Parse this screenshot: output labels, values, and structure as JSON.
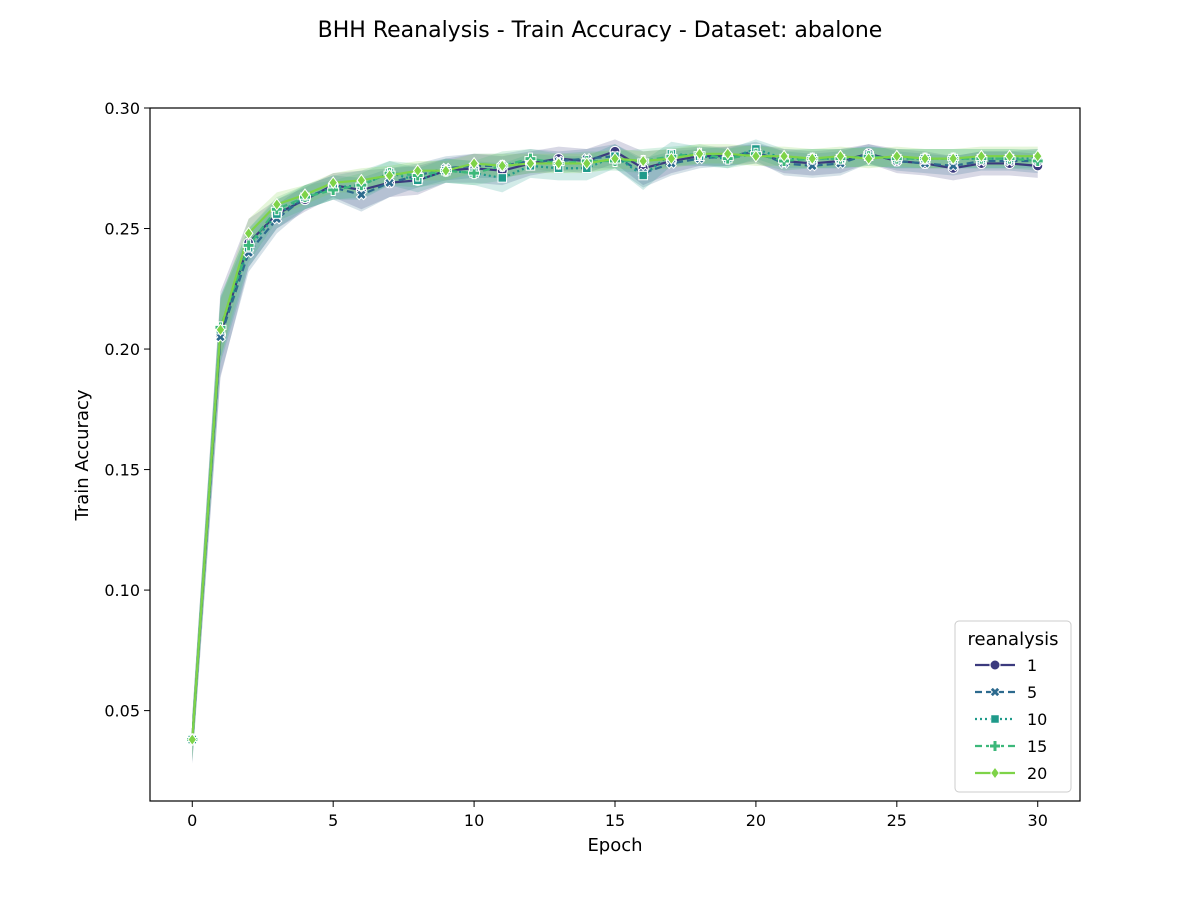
{
  "chart_data": {
    "type": "line",
    "title": "BHH Reanalysis - Train Accuracy - Dataset: abalone",
    "xlabel": "Epoch",
    "ylabel": "Train Accuracy",
    "xlim": [
      -1.5,
      31.5
    ],
    "ylim": [
      0.0125,
      0.3
    ],
    "xticks": [
      "0",
      "5",
      "10",
      "15",
      "20",
      "25",
      "30"
    ],
    "yticks": [
      "0.05",
      "0.10",
      "0.15",
      "0.20",
      "0.25",
      "0.30"
    ],
    "grid": false,
    "legend": {
      "title": "reanalysis",
      "placement": "lower-right"
    },
    "x": [
      0,
      1,
      2,
      3,
      4,
      5,
      6,
      7,
      8,
      9,
      10,
      11,
      12,
      13,
      14,
      15,
      16,
      17,
      18,
      19,
      20,
      21,
      22,
      23,
      24,
      25,
      26,
      27,
      28,
      29,
      30
    ],
    "series": [
      {
        "name": "1",
        "color": "#3b3a7e",
        "dash": "solid",
        "marker": "circle",
        "values": [
          0.038,
          0.206,
          0.244,
          0.256,
          0.262,
          0.268,
          0.266,
          0.269,
          0.27,
          0.274,
          0.275,
          0.274,
          0.277,
          0.279,
          0.278,
          0.282,
          0.275,
          0.278,
          0.28,
          0.28,
          0.281,
          0.278,
          0.277,
          0.278,
          0.281,
          0.278,
          0.277,
          0.275,
          0.277,
          0.277,
          0.276
        ],
        "band": [
          0.01,
          0.018,
          0.01,
          0.006,
          0.005,
          0.005,
          0.008,
          0.006,
          0.006,
          0.005,
          0.006,
          0.006,
          0.005,
          0.005,
          0.005,
          0.005,
          0.007,
          0.005,
          0.004,
          0.004,
          0.004,
          0.005,
          0.005,
          0.005,
          0.004,
          0.005,
          0.005,
          0.005,
          0.005,
          0.005,
          0.005
        ]
      },
      {
        "name": "5",
        "color": "#2d6a8e",
        "dash": "dashed",
        "marker": "x",
        "values": [
          0.038,
          0.205,
          0.24,
          0.254,
          0.263,
          0.267,
          0.264,
          0.269,
          0.272,
          0.275,
          0.276,
          0.276,
          0.278,
          0.278,
          0.279,
          0.28,
          0.273,
          0.277,
          0.279,
          0.28,
          0.282,
          0.277,
          0.276,
          0.277,
          0.281,
          0.278,
          0.277,
          0.276,
          0.278,
          0.278,
          0.278
        ],
        "band": [
          0.01,
          0.016,
          0.008,
          0.006,
          0.005,
          0.005,
          0.007,
          0.006,
          0.005,
          0.005,
          0.005,
          0.005,
          0.005,
          0.004,
          0.004,
          0.005,
          0.006,
          0.005,
          0.004,
          0.004,
          0.004,
          0.005,
          0.005,
          0.005,
          0.004,
          0.004,
          0.004,
          0.004,
          0.004,
          0.004,
          0.005
        ]
      },
      {
        "name": "10",
        "color": "#1f9a8a",
        "dash": "dotted",
        "marker": "square",
        "values": [
          0.038,
          0.208,
          0.242,
          0.256,
          0.263,
          0.267,
          0.268,
          0.273,
          0.27,
          0.274,
          0.273,
          0.271,
          0.276,
          0.275,
          0.275,
          0.28,
          0.272,
          0.281,
          0.28,
          0.279,
          0.283,
          0.279,
          0.279,
          0.279,
          0.28,
          0.279,
          0.279,
          0.279,
          0.279,
          0.279,
          0.279
        ],
        "band": [
          0.009,
          0.014,
          0.008,
          0.006,
          0.005,
          0.005,
          0.006,
          0.005,
          0.005,
          0.005,
          0.005,
          0.006,
          0.005,
          0.005,
          0.005,
          0.005,
          0.006,
          0.005,
          0.004,
          0.004,
          0.004,
          0.004,
          0.004,
          0.004,
          0.004,
          0.004,
          0.004,
          0.004,
          0.004,
          0.004,
          0.004
        ]
      },
      {
        "name": "15",
        "color": "#3cb87a",
        "dash": "dashed",
        "marker": "plus",
        "values": [
          0.038,
          0.209,
          0.243,
          0.258,
          0.263,
          0.266,
          0.268,
          0.273,
          0.272,
          0.274,
          0.273,
          0.276,
          0.279,
          0.277,
          0.278,
          0.278,
          0.278,
          0.28,
          0.281,
          0.279,
          0.281,
          0.278,
          0.279,
          0.279,
          0.28,
          0.279,
          0.279,
          0.279,
          0.279,
          0.279,
          0.278
        ],
        "band": [
          0.009,
          0.013,
          0.007,
          0.005,
          0.005,
          0.004,
          0.005,
          0.005,
          0.005,
          0.005,
          0.005,
          0.006,
          0.004,
          0.004,
          0.004,
          0.004,
          0.005,
          0.004,
          0.004,
          0.004,
          0.004,
          0.004,
          0.004,
          0.004,
          0.004,
          0.004,
          0.004,
          0.004,
          0.004,
          0.004,
          0.004
        ]
      },
      {
        "name": "20",
        "color": "#7ed348",
        "dash": "solid",
        "marker": "diamond",
        "values": [
          0.038,
          0.208,
          0.248,
          0.26,
          0.264,
          0.269,
          0.27,
          0.272,
          0.274,
          0.274,
          0.277,
          0.276,
          0.277,
          0.277,
          0.277,
          0.279,
          0.278,
          0.279,
          0.281,
          0.281,
          0.28,
          0.28,
          0.279,
          0.28,
          0.279,
          0.28,
          0.279,
          0.279,
          0.28,
          0.28,
          0.28
        ],
        "band": [
          0.009,
          0.012,
          0.006,
          0.005,
          0.004,
          0.004,
          0.005,
          0.004,
          0.004,
          0.004,
          0.004,
          0.005,
          0.004,
          0.004,
          0.004,
          0.004,
          0.004,
          0.004,
          0.004,
          0.004,
          0.004,
          0.004,
          0.004,
          0.004,
          0.004,
          0.004,
          0.004,
          0.004,
          0.004,
          0.004,
          0.004
        ]
      }
    ]
  }
}
